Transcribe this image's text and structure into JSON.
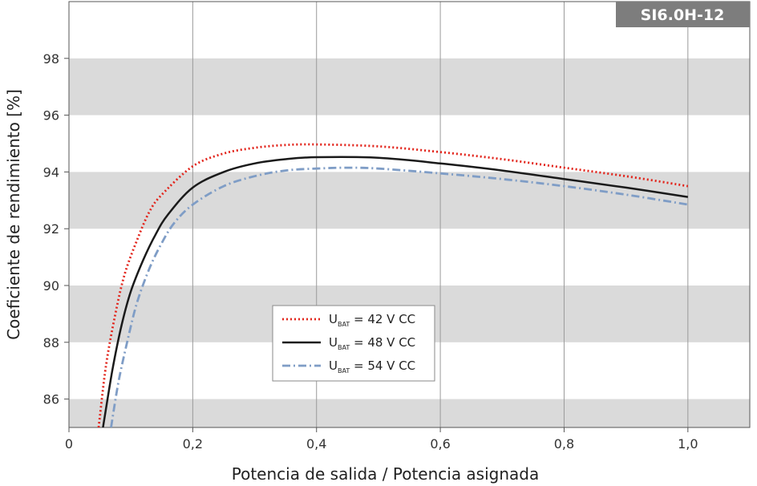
{
  "chart_data": {
    "type": "line",
    "badge": "SI6.0H-12",
    "xlabel": "Potencia de salida / Potencia asignada",
    "ylabel": "Coeficiente de rendimiento [%]",
    "xlim": [
      0,
      1.1
    ],
    "ylim": [
      85,
      100
    ],
    "x_ticks": [
      0,
      0.2,
      0.4,
      0.6,
      0.8,
      1.0
    ],
    "x_tick_labels": [
      "0",
      "0,2",
      "0,4",
      "0,6",
      "0,8",
      "1,0"
    ],
    "y_ticks": [
      86,
      88,
      90,
      92,
      94,
      96,
      98
    ],
    "y_tick_labels": [
      "86",
      "88",
      "90",
      "92",
      "94",
      "96",
      "98"
    ],
    "bands": [
      [
        85,
        86
      ],
      [
        88,
        90
      ],
      [
        92,
        94
      ],
      [
        96,
        98
      ]
    ],
    "grid": "vertical",
    "legend_placement": "center-left",
    "series": [
      {
        "name": "U_BAT = 42 V CC",
        "label_main": "U",
        "label_sub": "BAT",
        "label_rest": " = 42 V CC",
        "color": "#e2231a",
        "style": "dotted",
        "x": [
          0.048,
          0.06,
          0.075,
          0.09,
          0.11,
          0.13,
          0.15,
          0.2,
          0.25,
          0.3,
          0.35,
          0.4,
          0.5,
          0.6,
          0.7,
          0.8,
          0.9,
          1.0
        ],
        "y": [
          85.0,
          87.2,
          89.0,
          90.4,
          91.6,
          92.6,
          93.2,
          94.2,
          94.65,
          94.85,
          94.95,
          94.97,
          94.9,
          94.7,
          94.45,
          94.15,
          93.85,
          93.5
        ]
      },
      {
        "name": "U_BAT = 48 V CC",
        "label_main": "U",
        "label_sub": "BAT",
        "label_rest": " = 48 V CC",
        "color": "#1a1a1a",
        "style": "solid",
        "x": [
          0.055,
          0.07,
          0.085,
          0.1,
          0.12,
          0.14,
          0.16,
          0.2,
          0.25,
          0.3,
          0.35,
          0.4,
          0.5,
          0.6,
          0.7,
          0.8,
          0.9,
          1.0
        ],
        "y": [
          85.0,
          87.0,
          88.6,
          89.8,
          90.9,
          91.8,
          92.5,
          93.45,
          94.0,
          94.3,
          94.45,
          94.52,
          94.5,
          94.3,
          94.05,
          93.75,
          93.45,
          93.12
        ]
      },
      {
        "name": "U_BAT = 54 V CC",
        "label_main": "U",
        "label_sub": "BAT",
        "label_rest": " = 54 V CC",
        "color": "#7f9dc6",
        "style": "dashdot",
        "x": [
          0.068,
          0.08,
          0.095,
          0.11,
          0.13,
          0.15,
          0.17,
          0.2,
          0.25,
          0.3,
          0.35,
          0.4,
          0.45,
          0.5,
          0.6,
          0.7,
          0.8,
          0.9,
          1.0
        ],
        "y": [
          85.0,
          86.6,
          88.1,
          89.4,
          90.6,
          91.5,
          92.2,
          92.85,
          93.5,
          93.85,
          94.05,
          94.12,
          94.15,
          94.12,
          93.95,
          93.75,
          93.5,
          93.2,
          92.85
        ]
      }
    ]
  }
}
